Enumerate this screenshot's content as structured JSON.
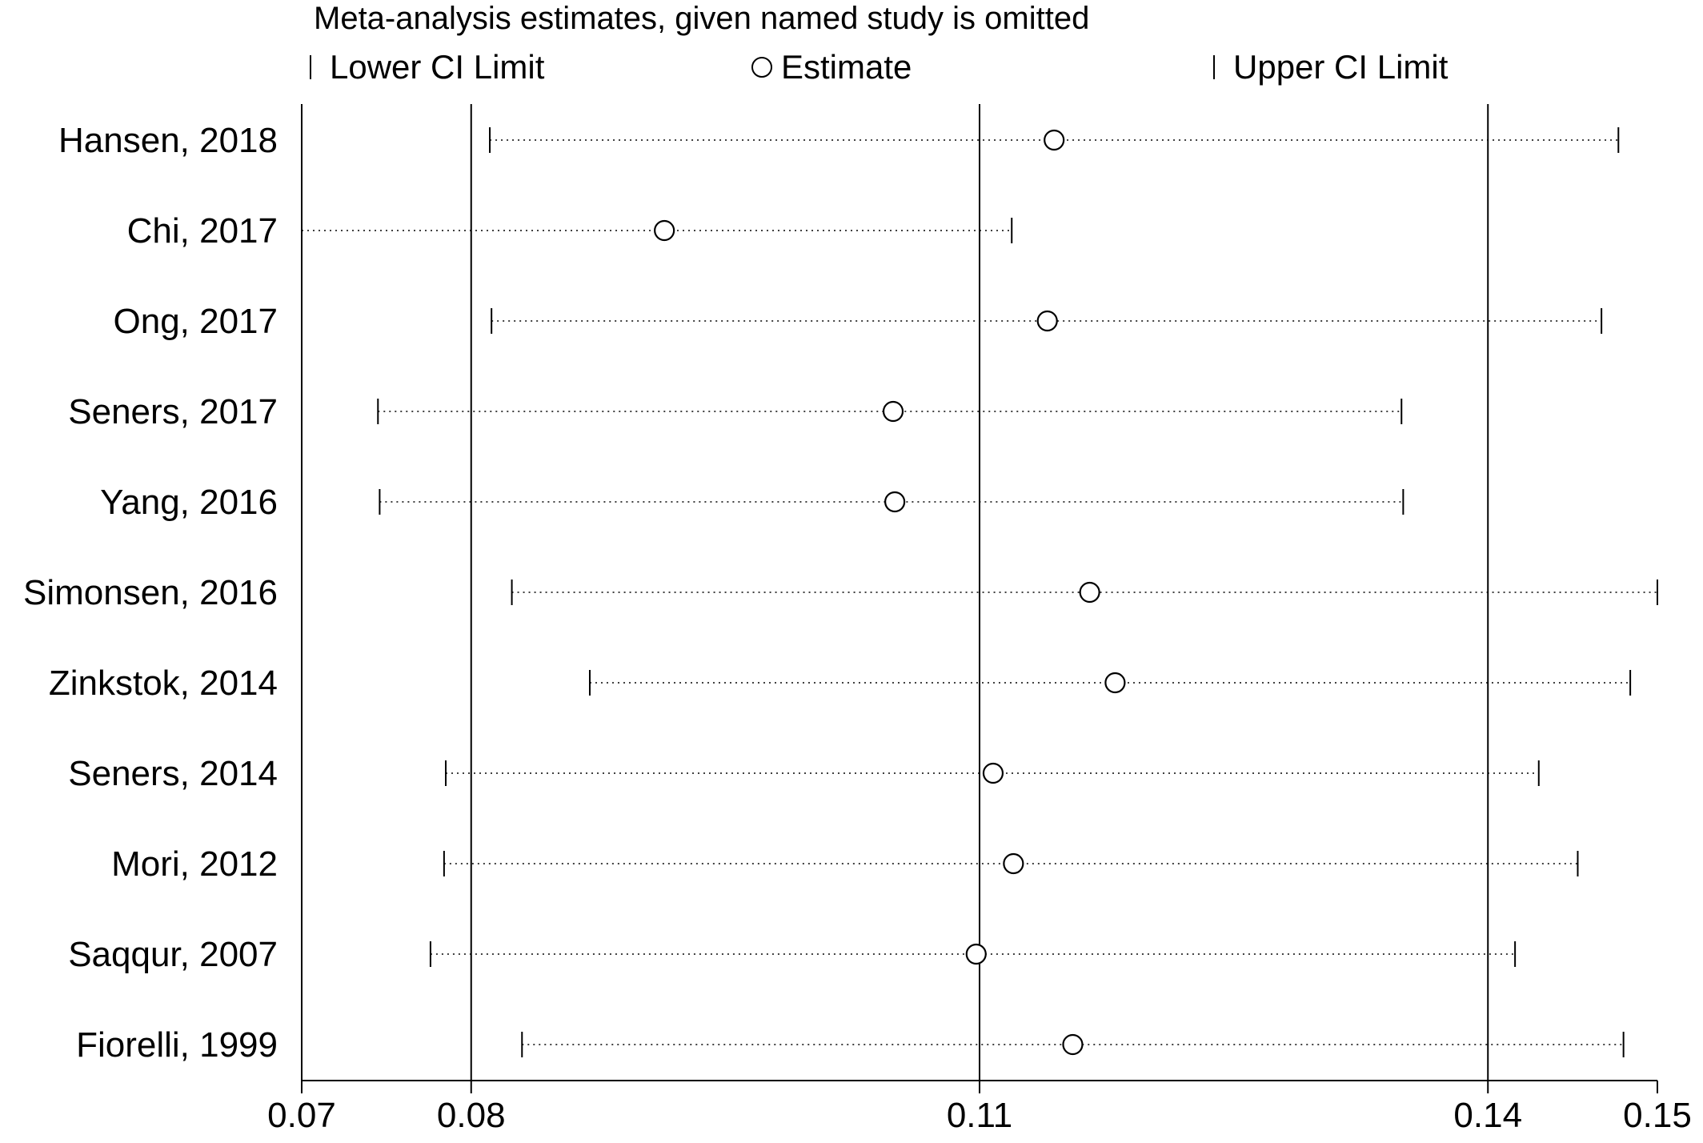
{
  "chart_data": {
    "type": "scatter",
    "title": "Meta-analysis estimates, given named study is omitted",
    "legend": {
      "placement": "top",
      "entries": [
        {
          "key": "lower",
          "label": "Lower CI Limit",
          "symbol": "bar"
        },
        {
          "key": "estimate",
          "label": "Estimate",
          "symbol": "circle"
        },
        {
          "key": "upper",
          "label": "Upper CI Limit",
          "symbol": "bar"
        }
      ]
    },
    "xlabel": "",
    "ylabel": "",
    "xlim": [
      0.07,
      0.15
    ],
    "xticks": [
      {
        "value": 0.07,
        "label": "0.07"
      },
      {
        "value": 0.08,
        "label": "0.08"
      },
      {
        "value": 0.11,
        "label": "0.11"
      },
      {
        "value": 0.14,
        "label": "0.14"
      },
      {
        "value": 0.15,
        "label": "0.15"
      }
    ],
    "reference_lines": [
      0.08,
      0.11,
      0.14
    ],
    "grid": false,
    "studies": [
      {
        "label": "Hansen, 2018",
        "lower": 0.0811,
        "estimate": 0.1144,
        "upper": 0.1477
      },
      {
        "label": "Chi, 2017",
        "lower": 0.07,
        "estimate": 0.0914,
        "upper": 0.1119
      },
      {
        "label": "Ong, 2017",
        "lower": 0.0812,
        "estimate": 0.114,
        "upper": 0.1467
      },
      {
        "label": "Seners, 2017",
        "lower": 0.0745,
        "estimate": 0.1049,
        "upper": 0.1349
      },
      {
        "label": "Yang, 2016",
        "lower": 0.0746,
        "estimate": 0.105,
        "upper": 0.135
      },
      {
        "label": "Simonsen, 2016",
        "lower": 0.0824,
        "estimate": 0.1165,
        "upper": 0.15
      },
      {
        "label": "Zinkstok, 2014",
        "lower": 0.087,
        "estimate": 0.118,
        "upper": 0.1484
      },
      {
        "label": "Seners, 2014",
        "lower": 0.0785,
        "estimate": 0.1108,
        "upper": 0.143
      },
      {
        "label": "Mori, 2012",
        "lower": 0.0784,
        "estimate": 0.112,
        "upper": 0.1453
      },
      {
        "label": "Saqqur, 2007",
        "lower": 0.0776,
        "estimate": 0.1098,
        "upper": 0.1416
      },
      {
        "label": "Fiorelli, 1999",
        "lower": 0.083,
        "estimate": 0.1155,
        "upper": 0.148
      }
    ]
  }
}
